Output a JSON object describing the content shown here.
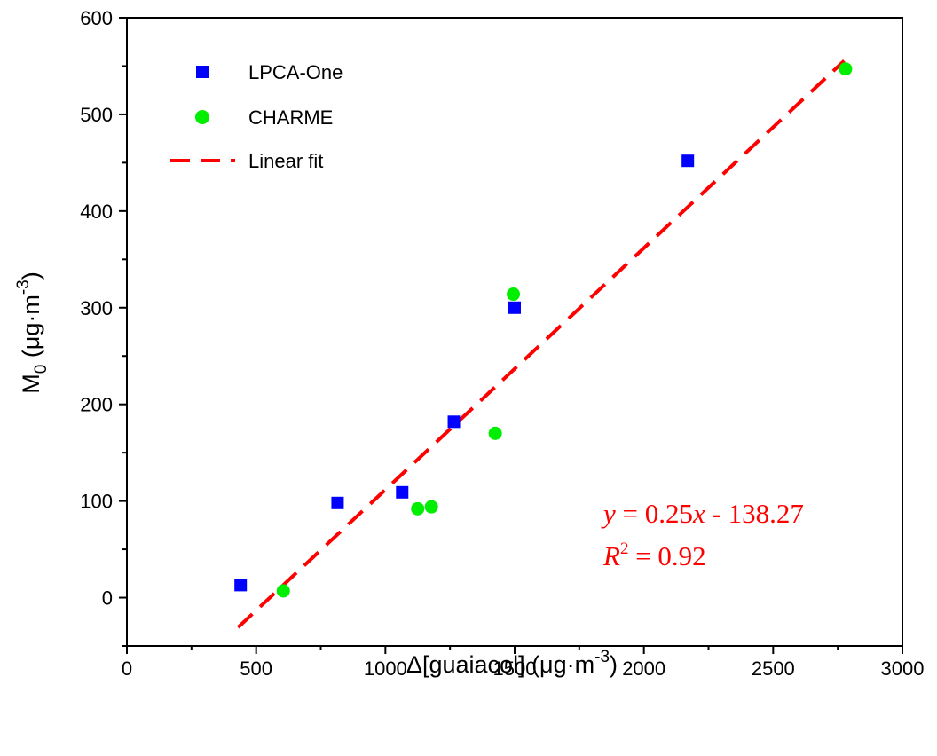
{
  "chart_data": {
    "type": "scatter",
    "xlim": [
      0,
      3000
    ],
    "ylim": [
      -50,
      600
    ],
    "x_ticks": [
      0,
      500,
      1000,
      1500,
      2000,
      2500,
      3000
    ],
    "y_ticks": [
      0,
      100,
      200,
      300,
      400,
      500,
      600
    ],
    "xlabel": {
      "prefix": "Δ[guaiacol] (μg·m",
      "sup": "-3",
      "suffix": ")"
    },
    "ylabel": {
      "main": "M",
      "sub": "0",
      "mid": " (μg·m",
      "sup": "-3",
      "suffix": ")"
    },
    "legend_position": "top-left",
    "series": [
      {
        "name": "LPCA-One",
        "marker": "square",
        "color": "#0000ff",
        "points": [
          {
            "x": 440,
            "y": 13
          },
          {
            "x": 815,
            "y": 98
          },
          {
            "x": 1065,
            "y": 109
          },
          {
            "x": 1265,
            "y": 182
          },
          {
            "x": 1500,
            "y": 300
          },
          {
            "x": 2170,
            "y": 452
          }
        ]
      },
      {
        "name": "CHARME",
        "marker": "circle",
        "color": "#00ee00",
        "points": [
          {
            "x": 605,
            "y": 7
          },
          {
            "x": 1125,
            "y": 92
          },
          {
            "x": 1178,
            "y": 94
          },
          {
            "x": 1425,
            "y": 170
          },
          {
            "x": 1495,
            "y": 314
          },
          {
            "x": 2780,
            "y": 547
          }
        ]
      }
    ],
    "fit": {
      "name": "Linear fit",
      "color": "#ff0000",
      "style": "dashed",
      "slope": 0.25,
      "intercept": -138.27,
      "x_range": [
        430,
        2775
      ]
    },
    "annotation": {
      "equation": {
        "y": "y",
        "eq": " = 0.25",
        "x": "x",
        "rest": " - 138.27"
      },
      "r2": {
        "r": "R",
        "sup": "2",
        "rest": " = 0.92"
      }
    }
  }
}
